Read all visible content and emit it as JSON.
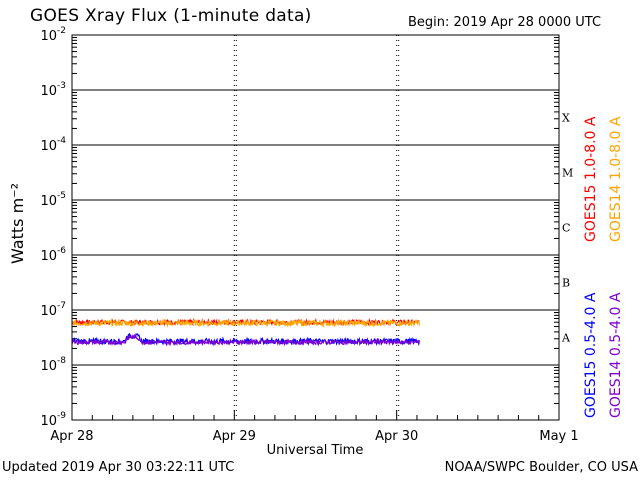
{
  "header": {
    "title": "GOES Xray Flux (1-minute data)",
    "begin": "Begin:  2019 Apr 28 0000 UTC"
  },
  "footer": {
    "updated": "Updated 2019 Apr 30 03:22:11 UTC",
    "credit": "NOAA/SWPC Boulder, CO USA"
  },
  "colors": {
    "goes15_long": "#ff0000",
    "goes14_long": "#ffa500",
    "goes15_short": "#0000ff",
    "goes14_short": "#7f00cf"
  },
  "chart_data": {
    "type": "line",
    "title": "GOES Xray Flux (1-minute data)",
    "xlabel": "Universal Time",
    "ylabel": "Watts m⁻²",
    "x_ticks": [
      "Apr 28",
      "Apr 29",
      "Apr 30",
      "May 1"
    ],
    "x_range_days": [
      0,
      3
    ],
    "y_scale": "log",
    "y_ticks": [
      {
        "base": "10",
        "exp": "-2"
      },
      {
        "base": "10",
        "exp": "-3"
      },
      {
        "base": "10",
        "exp": "-4"
      },
      {
        "base": "10",
        "exp": "-5"
      },
      {
        "base": "10",
        "exp": "-6"
      },
      {
        "base": "10",
        "exp": "-7"
      },
      {
        "base": "10",
        "exp": "-8"
      },
      {
        "base": "10",
        "exp": "-9"
      }
    ],
    "ylim": [
      1e-09,
      0.01
    ],
    "flare_classes": [
      "X",
      "M",
      "C",
      "B",
      "A"
    ],
    "grid": true,
    "series": [
      {
        "name": "GOES15 1.0-8.0 A",
        "color": "#ff0000",
        "x_end_day": 2.14,
        "level": 6e-08,
        "noise": 0.04
      },
      {
        "name": "GOES14 1.0-8.0 A",
        "color": "#ffa500",
        "x_end_day": 2.14,
        "level": 5.8e-08,
        "noise": 0.05
      },
      {
        "name": "GOES15 0.5-4.0 A",
        "color": "#0000ff",
        "x_end_day": 2.14,
        "level": 2.7e-08,
        "noise": 0.05
      },
      {
        "name": "GOES14 0.5-4.0 A",
        "color": "#7f00cf",
        "x_end_day": 2.14,
        "level": 2.6e-08,
        "noise": 0.04
      }
    ]
  }
}
